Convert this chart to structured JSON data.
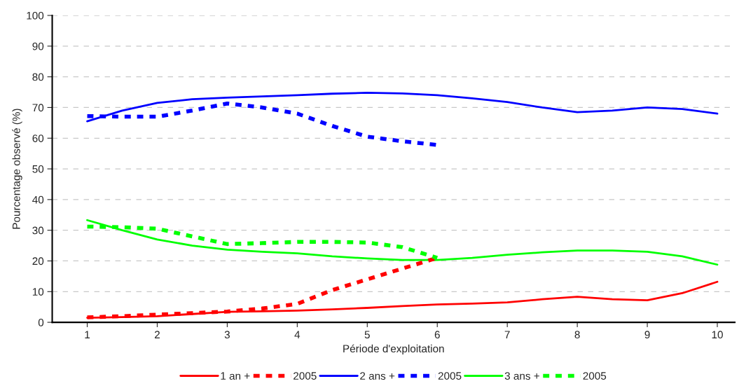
{
  "chart_data": {
    "type": "line",
    "xlabel": "Période d'exploitation",
    "ylabel": "Pourcentage observé (%)",
    "xlim": [
      0.5,
      10.25
    ],
    "xticks": [
      1,
      2,
      3,
      4,
      5,
      6,
      7,
      8,
      9,
      10
    ],
    "ylim": [
      0,
      100
    ],
    "yticks": [
      0,
      10,
      20,
      30,
      40,
      50,
      60,
      70,
      80,
      90,
      100
    ],
    "grid": "y",
    "legend": "bottom",
    "marker": "none",
    "series": [
      {
        "name": "1 an +",
        "color": "#ff0000",
        "line_style": "solid",
        "x": [
          1,
          1.5,
          2,
          2.5,
          3,
          3.5,
          4,
          4.5,
          5,
          5.5,
          6,
          6.5,
          7,
          7.5,
          8,
          8.5,
          9,
          9.5,
          10
        ],
        "values": [
          1.5,
          1.7,
          2,
          2.7,
          3.4,
          3.6,
          3.8,
          4.2,
          4.7,
          5.3,
          5.8,
          6.1,
          6.5,
          7.5,
          8.3,
          7.5,
          7.2,
          9.5,
          13.2
        ]
      },
      {
        "name": "2005",
        "color": "#ff0000",
        "line_style": "dashed",
        "x": [
          1,
          1.5,
          2,
          2.5,
          3,
          3.5,
          4,
          4.5,
          5,
          5.5,
          6
        ],
        "values": [
          1.6,
          2,
          2.5,
          3,
          3.5,
          4.5,
          6,
          10.5,
          14,
          17.5,
          21
        ]
      },
      {
        "name": "2 ans +",
        "color": "#0000ff",
        "line_style": "solid",
        "x": [
          1,
          1.5,
          2,
          2.5,
          3,
          3.5,
          4,
          4.5,
          5,
          5.5,
          6,
          6.5,
          7,
          7.5,
          8,
          8.5,
          9,
          9.5,
          10
        ],
        "values": [
          65.5,
          69,
          71.5,
          72.7,
          73.2,
          73.6,
          74,
          74.5,
          74.8,
          74.6,
          74,
          73,
          71.8,
          70,
          68.5,
          69,
          70,
          69.5,
          68
        ]
      },
      {
        "name": "2005",
        "color": "#0000ff",
        "line_style": "dashed",
        "x": [
          1,
          1.5,
          2,
          2.5,
          3,
          3.5,
          4,
          4.5,
          5,
          5.5,
          6
        ],
        "values": [
          67.2,
          67,
          67,
          69,
          71.3,
          70,
          68,
          64,
          60.5,
          59,
          57.8
        ]
      },
      {
        "name": "3 ans +",
        "color": "#00ff00",
        "line_style": "solid",
        "x": [
          1,
          1.5,
          2,
          2.5,
          3,
          3.5,
          4,
          4.5,
          5,
          5.5,
          6,
          6.5,
          7,
          7.5,
          8,
          8.5,
          9,
          9.5,
          10
        ],
        "values": [
          33.3,
          30,
          27,
          25,
          23.7,
          23,
          22.5,
          21.5,
          20.8,
          20.3,
          20.3,
          21,
          22,
          22.8,
          23.4,
          23.4,
          23,
          21.5,
          18.8
        ]
      },
      {
        "name": "2005",
        "color": "#00ff00",
        "line_style": "dashed",
        "x": [
          1,
          1.5,
          2,
          2.5,
          3,
          3.5,
          4,
          4.5,
          5,
          5.5,
          6
        ],
        "values": [
          31.2,
          31,
          30.5,
          28,
          25.5,
          25.8,
          26.2,
          26.2,
          26,
          24.5,
          21
        ]
      }
    ]
  }
}
